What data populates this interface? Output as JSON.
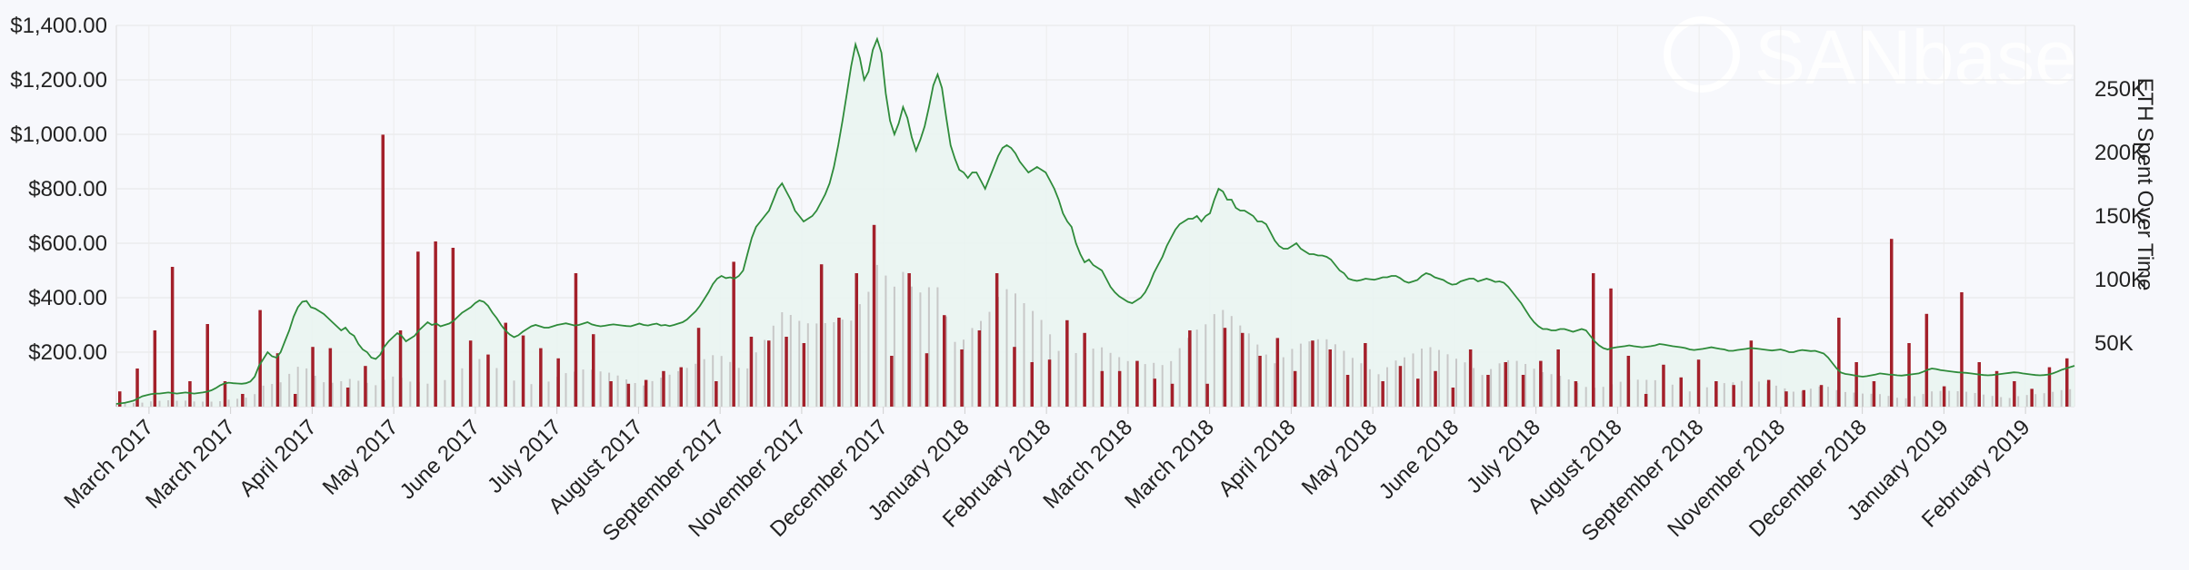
{
  "watermark": "SANbase",
  "chart_data": {
    "type": "bar",
    "y_left": {
      "min": 0,
      "max": 1400,
      "ticks": [
        200,
        400,
        600,
        800,
        1000,
        1200,
        1400
      ],
      "tick_labels": [
        "$200.00",
        "$400.00",
        "$600.00",
        "$800.00",
        "$1,000.00",
        "$1,200.00",
        "$1,400.00"
      ]
    },
    "y_right": {
      "label": "ETH Spent Over Time",
      "min": 0,
      "max": 300000,
      "ticks": [
        50000,
        100000,
        150000,
        200000,
        250000
      ],
      "tick_labels": [
        "50K",
        "100K",
        "150K",
        "200K",
        "250K"
      ]
    },
    "x_ticks": [
      "March 2017",
      "March 2017",
      "April 2017",
      "May 2017",
      "June 2017",
      "July 2017",
      "August 2017",
      "September 2017",
      "November 2017",
      "December 2017",
      "January 2018",
      "February 2018",
      "March 2018",
      "March 2018",
      "April 2018",
      "May 2018",
      "June 2018",
      "July 2018",
      "August 2018",
      "September 2018",
      "November 2018",
      "December 2018",
      "January 2019",
      "February 2019"
    ],
    "grid": true,
    "legend": "none",
    "colors": {
      "price_line": "#2e8b3a",
      "price_fill": "#e9f4f1",
      "spent_bars": "#a3202a",
      "volume_bars": "#c8c8c8"
    },
    "series": [
      {
        "type": "line",
        "axis": "left",
        "values": [
          10,
          12,
          14,
          18,
          22,
          30,
          38,
          42,
          46,
          48,
          48,
          50,
          52,
          50,
          48,
          50,
          52,
          50,
          48,
          50,
          52,
          55,
          60,
          68,
          78,
          85,
          88,
          86,
          85,
          84,
          86,
          92,
          110,
          150,
          175,
          200,
          185,
          180,
          200,
          240,
          280,
          330,
          365,
          385,
          388,
          365,
          360,
          350,
          340,
          325,
          310,
          295,
          280,
          290,
          270,
          260,
          230,
          210,
          200,
          180,
          175,
          190,
          220,
          240,
          255,
          270,
          260,
          240,
          250,
          260,
          280,
          295,
          310,
          300,
          305,
          295,
          300,
          305,
          315,
          330,
          345,
          355,
          365,
          380,
          390,
          385,
          370,
          345,
          325,
          300,
          280,
          265,
          255,
          262,
          275,
          285,
          295,
          300,
          295,
          290,
          290,
          295,
          300,
          303,
          306,
          302,
          298,
          300,
          305,
          310,
          302,
          298,
          295,
          297,
          300,
          302,
          300,
          298,
          296,
          295,
          300,
          305,
          300,
          298,
          302,
          305,
          298,
          300,
          296,
          300,
          305,
          310,
          320,
          335,
          350,
          370,
          395,
          420,
          450,
          470,
          480,
          472,
          475,
          470,
          480,
          500,
          560,
          620,
          660,
          680,
          700,
          720,
          760,
          800,
          820,
          790,
          760,
          720,
          700,
          680,
          690,
          700,
          720,
          750,
          780,
          820,
          880,
          960,
          1050,
          1150,
          1250,
          1330,
          1280,
          1200,
          1230,
          1310,
          1350,
          1300,
          1150,
          1050,
          1000,
          1040,
          1100,
          1060,
          990,
          940,
          980,
          1030,
          1100,
          1180,
          1220,
          1170,
          1060,
          960,
          910,
          870,
          860,
          840,
          860,
          860,
          830,
          800,
          840,
          880,
          920,
          950,
          960,
          950,
          930,
          900,
          880,
          860,
          870,
          880,
          870,
          860,
          830,
          800,
          760,
          710,
          680,
          660,
          600,
          560,
          530,
          540,
          520,
          510,
          500,
          470,
          440,
          420,
          405,
          395,
          385,
          380,
          390,
          400,
          420,
          450,
          490,
          520,
          550,
          590,
          620,
          650,
          670,
          680,
          690,
          690,
          700,
          680,
          700,
          710,
          760,
          800,
          790,
          760,
          760,
          730,
          720,
          720,
          710,
          700,
          680,
          680,
          670,
          640,
          610,
          590,
          580,
          580,
          590,
          600,
          580,
          570,
          560,
          560,
          555,
          555,
          550,
          540,
          520,
          500,
          490,
          470,
          465,
          462,
          465,
          470,
          468,
          466,
          470,
          475,
          475,
          480,
          480,
          472,
          460,
          455,
          460,
          465,
          480,
          490,
          485,
          475,
          470,
          465,
          455,
          448,
          450,
          460,
          465,
          470,
          470,
          460,
          465,
          470,
          465,
          458,
          460,
          455,
          440,
          420,
          400,
          380,
          355,
          330,
          310,
          295,
          285,
          285,
          280,
          280,
          285,
          285,
          280,
          275,
          280,
          285,
          280,
          260,
          240,
          225,
          215,
          210,
          215,
          218,
          220,
          222,
          225,
          222,
          220,
          218,
          220,
          222,
          225,
          230,
          228,
          225,
          222,
          220,
          218,
          215,
          210,
          208,
          210,
          212,
          215,
          218,
          215,
          212,
          210,
          205,
          205,
          208,
          210,
          212,
          215,
          214,
          212,
          210,
          208,
          206,
          208,
          210,
          206,
          200,
          200,
          205,
          208,
          206,
          204,
          205,
          200,
          195,
          180,
          160,
          140,
          125,
          120,
          118,
          115,
          112,
          110,
          112,
          115,
          118,
          122,
          120,
          118,
          117,
          115,
          114,
          116,
          118,
          120,
          122,
          128,
          135,
          140,
          138,
          134,
          132,
          130,
          128,
          126,
          125,
          124,
          122,
          120,
          118,
          116,
          115,
          116,
          118,
          120,
          122,
          124,
          126,
          125,
          122,
          120,
          118,
          116,
          115,
          116,
          118,
          122,
          128,
          135,
          140,
          145,
          150
        ]
      },
      {
        "type": "bar",
        "name": "ETH Spent Over Time",
        "axis": "right",
        "values": [
          12000,
          30000,
          60000,
          110000,
          20000,
          65000,
          20000,
          10000,
          76000,
          42000,
          10000,
          47000,
          46000,
          15000,
          32000,
          214000,
          60000,
          122000,
          130000,
          125000,
          52000,
          41000,
          66000,
          56000,
          46000,
          38000,
          105000,
          57000,
          20000,
          18000,
          21000,
          28000,
          31000,
          62000,
          20000,
          114000,
          55000,
          52000,
          55000,
          50000,
          112000,
          70000,
          105000,
          143000,
          40000,
          105000,
          42000,
          72000,
          45000,
          60000,
          105000,
          47000,
          35000,
          37000,
          68000,
          58000,
          28000,
          28000,
          36000,
          22000,
          18000,
          60000,
          18000,
          62000,
          58000,
          40000,
          54000,
          28000,
          52000,
          45000,
          25000,
          50000,
          20000,
          32000,
          22000,
          28000,
          15000,
          45000,
          25000,
          35000,
          25000,
          36000,
          45000,
          20000,
          105000,
          93000,
          40000,
          10000,
          33000,
          23000,
          37000,
          20000,
          17000,
          52000,
          21000,
          12000,
          13000,
          17000,
          70000,
          35000,
          20000,
          132000,
          50000,
          73000,
          16000,
          90000,
          35000,
          28000,
          20000,
          14000,
          31000,
          38000
        ]
      }
    ]
  }
}
